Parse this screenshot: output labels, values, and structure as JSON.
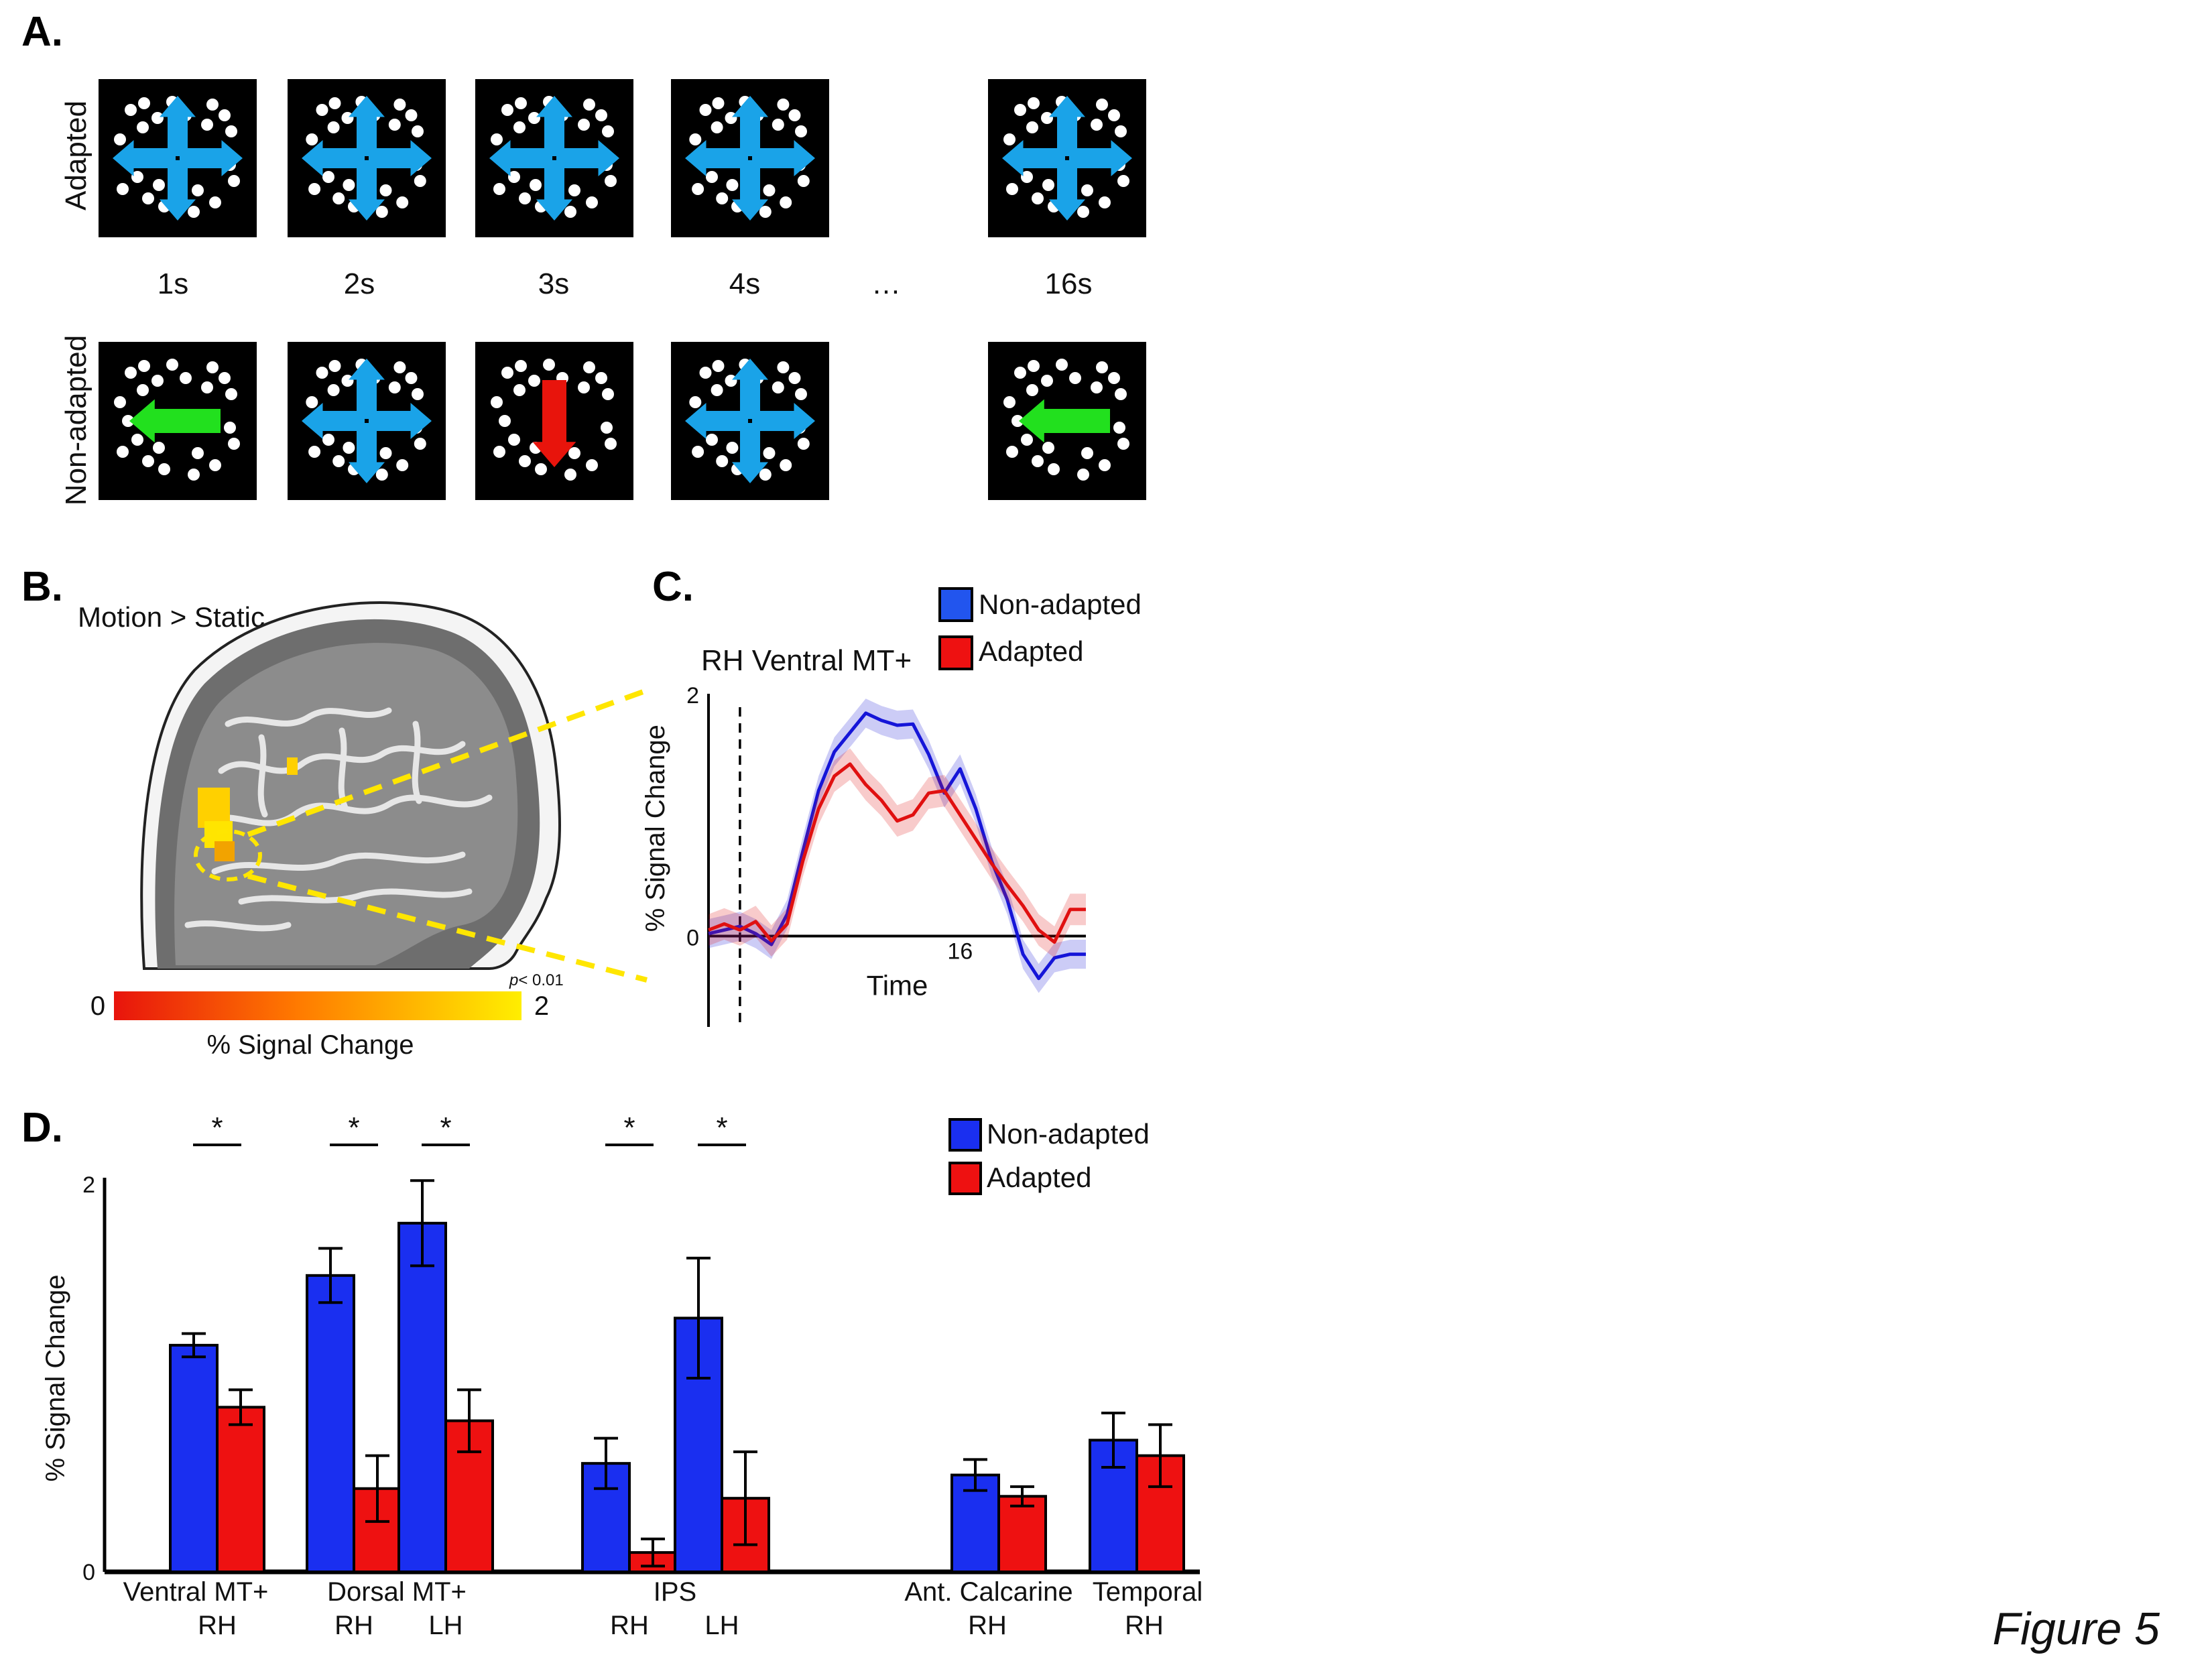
{
  "figure_label": "Figure 5",
  "panel_a": {
    "label": "A.",
    "row_labels": [
      "Adapted",
      "Non-adapted"
    ],
    "time_labels": [
      "1s",
      "2s",
      "3s",
      "4s",
      "…",
      "16s"
    ],
    "adapted_frames": [
      "four-way",
      "four-way",
      "four-way",
      "four-way",
      "four-way"
    ],
    "nonadapted_frames": [
      "left",
      "four-way",
      "down",
      "four-way",
      "left"
    ],
    "colors": {
      "four_way": "#1aa3e8",
      "left": "#22e01e",
      "down": "#e8140c",
      "frame": "#000000",
      "dots": "#ffffff"
    }
  },
  "panel_b": {
    "label": "B.",
    "title": "Motion > Static",
    "colorbar": {
      "min_label": "0",
      "max_label": "2",
      "p_label": "p",
      "p_value": "< 0.01",
      "axis_label": "% Signal Change",
      "colors": [
        "#e8140c",
        "#ff7a00",
        "#ffee00"
      ]
    }
  },
  "panel_c": {
    "label": "C.",
    "title": "RH Ventral MT+",
    "legend": [
      "Non-adapted",
      "Adapted"
    ],
    "colors": {
      "non_adapted": "#1515d8",
      "adapted": "#e01010",
      "legend_blue": "#2255ee",
      "legend_red": "#ee1111"
    },
    "chart_data": {
      "type": "line",
      "ylabel": "% Signal Change",
      "xlabel": "Time",
      "y_ticks": [
        "0",
        "2"
      ],
      "x_ticks": [
        "16"
      ],
      "ylim": [
        -0.75,
        2.0
      ],
      "xlim": [
        0,
        24
      ],
      "onset_marker": 2,
      "series": [
        {
          "name": "Non-adapted",
          "x": [
            0,
            1,
            2,
            3,
            4,
            5,
            6,
            7,
            8,
            9,
            10,
            11,
            12,
            13,
            14,
            15,
            16,
            17,
            18,
            19,
            20,
            21,
            22,
            23,
            24
          ],
          "y": [
            0.02,
            0.05,
            0.08,
            0.02,
            -0.07,
            0.18,
            0.7,
            1.2,
            1.52,
            1.68,
            1.84,
            1.78,
            1.74,
            1.75,
            1.5,
            1.18,
            1.38,
            1.05,
            0.62,
            0.3,
            -0.15,
            -0.35,
            -0.18,
            -0.15,
            -0.15
          ],
          "ci": 0.12
        },
        {
          "name": "Adapted",
          "x": [
            0,
            1,
            2,
            3,
            4,
            5,
            6,
            7,
            8,
            9,
            10,
            11,
            12,
            13,
            14,
            15,
            16,
            17,
            18,
            19,
            20,
            21,
            22,
            23,
            24
          ],
          "y": [
            0.05,
            0.1,
            0.05,
            0.12,
            -0.04,
            0.1,
            0.62,
            1.05,
            1.32,
            1.42,
            1.25,
            1.12,
            0.95,
            1.0,
            1.18,
            1.2,
            1.0,
            0.8,
            0.6,
            0.42,
            0.25,
            0.05,
            -0.05,
            0.22,
            0.22
          ],
          "ci": 0.13
        }
      ]
    }
  },
  "panel_d": {
    "label": "D.",
    "legend": [
      "Non-adapted",
      "Adapted"
    ],
    "colors": {
      "non_adapted": "#1a2ff0",
      "adapted": "#ee1111"
    },
    "chart_data": {
      "type": "bar",
      "ylabel": "% Signal Change",
      "y_ticks": [
        "0",
        "2"
      ],
      "ylim": [
        0,
        2
      ],
      "region_labels": [
        "Ventral MT+",
        "Dorsal MT+",
        "IPS",
        "Ant. Calcarine",
        "Temporal"
      ],
      "hemi_labels": [
        "RH",
        "RH",
        "LH",
        "RH",
        "LH",
        "RH",
        "RH"
      ],
      "categories": [
        "Ventral MT+ RH",
        "Dorsal MT+ RH",
        "Dorsal MT+ LH",
        "IPS RH",
        "IPS LH",
        "Ant. Calcarine RH",
        "Temporal RH"
      ],
      "series": [
        {
          "name": "Non-adapted",
          "values": [
            1.17,
            1.53,
            1.8,
            0.56,
            1.31,
            0.5,
            0.68
          ],
          "errors": [
            0.06,
            0.14,
            0.22,
            0.13,
            0.31,
            0.08,
            0.14
          ]
        },
        {
          "name": "Adapted",
          "values": [
            0.85,
            0.43,
            0.78,
            0.1,
            0.38,
            0.39,
            0.6
          ],
          "errors": [
            0.09,
            0.17,
            0.16,
            0.07,
            0.24,
            0.05,
            0.16
          ]
        }
      ],
      "significance": [
        "*",
        "*",
        "*",
        "*",
        "*",
        "",
        ""
      ]
    }
  }
}
